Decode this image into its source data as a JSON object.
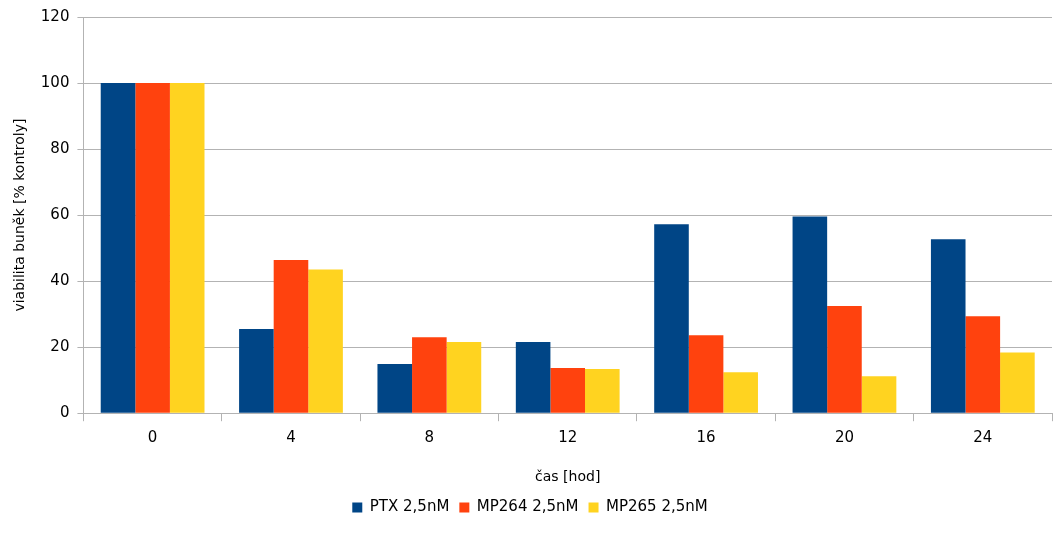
{
  "chart_data": {
    "type": "bar",
    "xlabel": "čas [hod]",
    "ylabel": "viabilita buněk [% kontroly]",
    "categories": [
      "0",
      "4",
      "8",
      "12",
      "16",
      "20",
      "24"
    ],
    "series": [
      {
        "name": "PTX 2,5nM",
        "color": "#004586",
        "values": [
          100,
          25.5,
          14.9,
          21.6,
          57.2,
          59.6,
          52.7
        ]
      },
      {
        "name": "MP264 2,5nM",
        "color": "#ff420e",
        "values": [
          100,
          46.4,
          23.0,
          13.7,
          23.6,
          32.5,
          29.4
        ]
      },
      {
        "name": "MP265 2,5nM",
        "color": "#ffd320",
        "values": [
          100,
          43.5,
          21.6,
          13.4,
          12.4,
          11.2,
          18.4
        ]
      }
    ],
    "ylim": [
      0,
      120
    ],
    "yticks": [
      0,
      20,
      40,
      60,
      80,
      100,
      120
    ],
    "grid": "y",
    "legend": "bottom"
  }
}
